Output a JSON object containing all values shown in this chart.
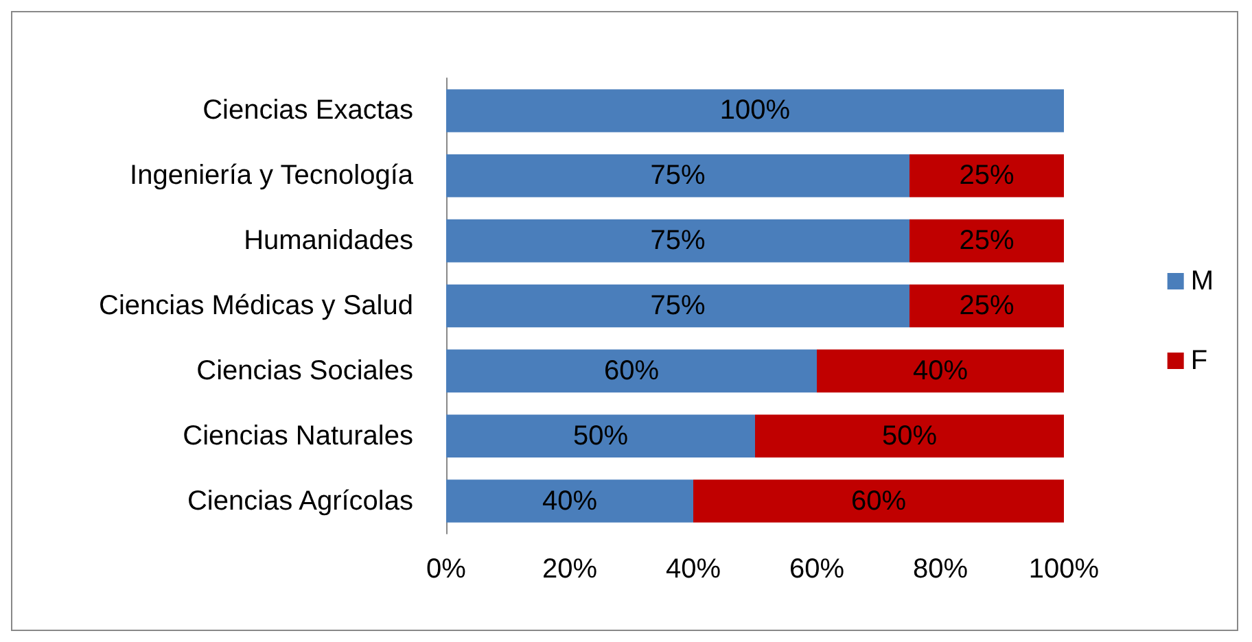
{
  "chart_data": {
    "type": "bar",
    "orientation": "horizontal",
    "stacked": true,
    "categories": [
      "Ciencias Exactas",
      "Ingeniería y Tecnología",
      "Humanidades",
      "Ciencias Médicas y Salud",
      "Ciencias Sociales",
      "Ciencias Naturales",
      "Ciencias Agrícolas"
    ],
    "series": [
      {
        "name": "M",
        "color": "#4a7ebb",
        "values": [
          100,
          75,
          75,
          75,
          60,
          50,
          40
        ],
        "value_labels": [
          "100%",
          "75%",
          "75%",
          "75%",
          "60%",
          "50%",
          "40%"
        ]
      },
      {
        "name": "F",
        "color": "#c00000",
        "values": [
          0,
          25,
          25,
          25,
          40,
          50,
          60
        ],
        "value_labels": [
          null,
          "25%",
          "25%",
          "25%",
          "40%",
          "50%",
          "60%"
        ]
      }
    ],
    "xlim": [
      0,
      100
    ],
    "xticks": [
      {
        "value": 0,
        "label": "0%"
      },
      {
        "value": 20,
        "label": "20%"
      },
      {
        "value": 40,
        "label": "40%"
      },
      {
        "value": 60,
        "label": "60%"
      },
      {
        "value": 80,
        "label": "80%"
      },
      {
        "value": 100,
        "label": "100%"
      }
    ],
    "grid": false,
    "legend": "right"
  }
}
